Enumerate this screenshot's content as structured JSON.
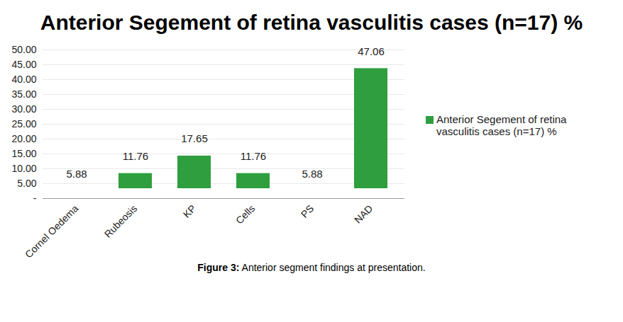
{
  "chart_data": {
    "type": "bar",
    "title": "Anterior Segement of retina vasculitis cases (n=17) %",
    "caption": "Figure 3: Anterior segment findings at presentation.",
    "categories": [
      "Cornel Oedema",
      "Rubeosis",
      "KP",
      "Cells",
      "PS",
      "NAD"
    ],
    "series": [
      {
        "name": "Anterior Segement of retina vasculitis cases (n=17) %",
        "color": "#2e9e3e",
        "values": [
          5.88,
          11.76,
          17.65,
          11.76,
          5.88,
          47.06
        ]
      }
    ],
    "ylim": [
      0,
      50
    ],
    "yticks": [
      {
        "value": 0,
        "label": "-"
      },
      {
        "value": 5,
        "label": "5.00"
      },
      {
        "value": 10,
        "label": "10.00"
      },
      {
        "value": 15,
        "label": "15.00"
      },
      {
        "value": 20,
        "label": "20.00"
      },
      {
        "value": 25,
        "label": "25.00"
      },
      {
        "value": 30,
        "label": "30.00"
      },
      {
        "value": 35,
        "label": "35.00"
      },
      {
        "value": 40,
        "label": "40.00"
      },
      {
        "value": 45,
        "label": "45.00"
      },
      {
        "value": 50,
        "label": "50.00"
      }
    ],
    "grid": true,
    "legend": "right",
    "data_labels": true
  }
}
